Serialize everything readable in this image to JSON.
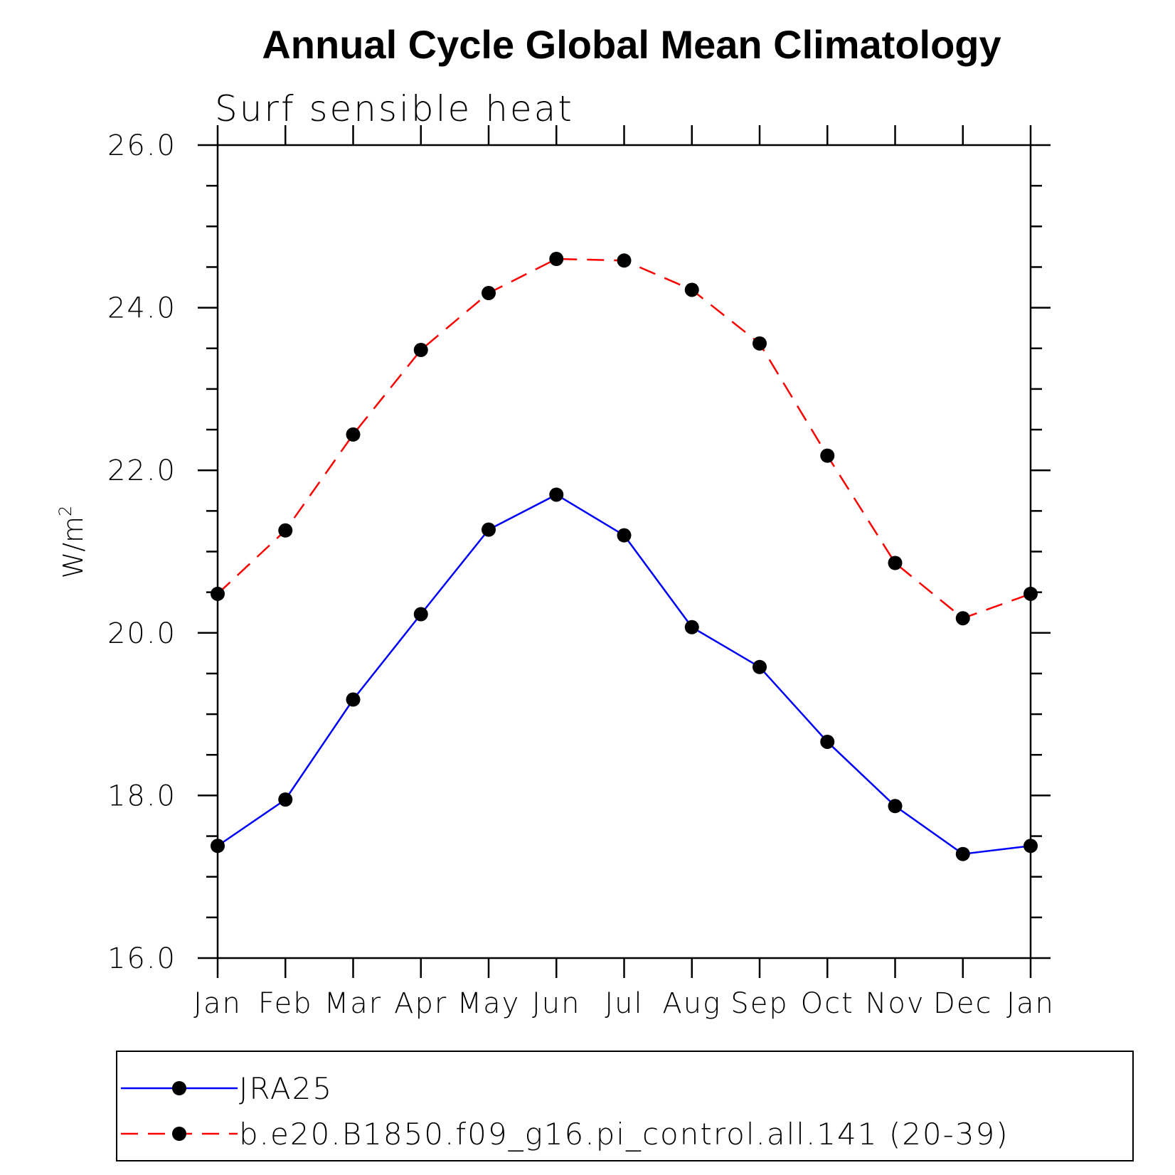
{
  "chart_data": {
    "type": "line",
    "title": "Annual Cycle Global Mean Climatology",
    "subtitle": "Surf sensible heat",
    "ylabel": "W/m",
    "ylabel_superscript": "2",
    "xlabel": "",
    "categories": [
      "Jan",
      "Feb",
      "Mar",
      "Apr",
      "May",
      "Jun",
      "Jul",
      "Aug",
      "Sep",
      "Oct",
      "Nov",
      "Dec",
      "Jan"
    ],
    "ylim": [
      16.0,
      26.0
    ],
    "yticks": [
      16.0,
      18.0,
      20.0,
      22.0,
      24.0,
      26.0
    ],
    "ytick_labels": [
      "16.0",
      "18.0",
      "20.0",
      "22.0",
      "24.0",
      "26.0"
    ],
    "grid": false,
    "legend_position": "bottom",
    "series": [
      {
        "name": "JRA25",
        "color": "#0000ff",
        "line_style": "solid",
        "marker": "filled-circle",
        "values": [
          17.38,
          17.95,
          19.18,
          20.23,
          21.27,
          21.7,
          21.2,
          20.07,
          19.58,
          18.66,
          17.87,
          17.28,
          17.38
        ]
      },
      {
        "name": "b.e20.B1850.f09_g16.pi_control.all.141 (20-39)",
        "color": "#ff0000",
        "line_style": "dashed",
        "marker": "filled-circle",
        "values": [
          20.48,
          21.26,
          22.44,
          23.48,
          24.18,
          24.6,
          24.58,
          24.22,
          23.56,
          22.18,
          20.86,
          20.18,
          20.48
        ]
      }
    ]
  }
}
